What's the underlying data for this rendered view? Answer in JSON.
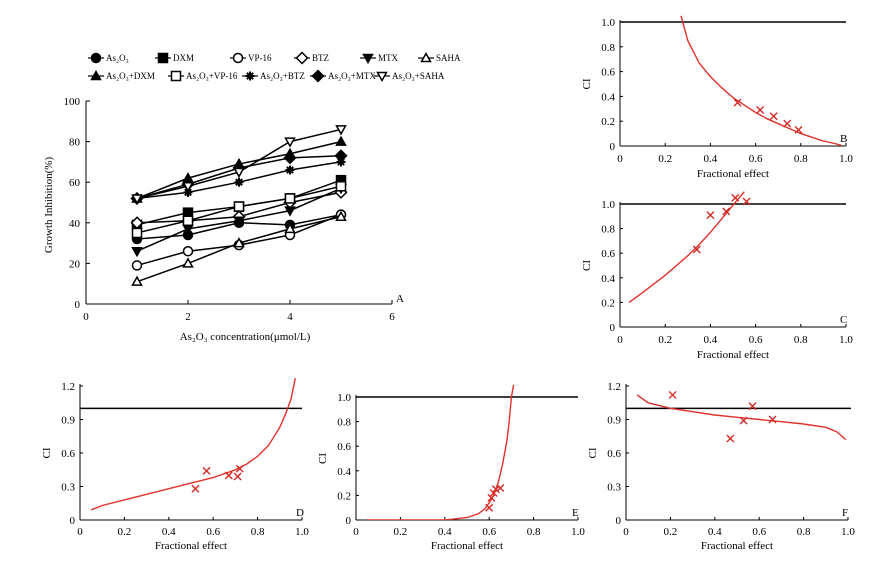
{
  "chart_data": [
    {
      "type": "line",
      "panel": "A",
      "xlabel": "As₂O₃ concentration(μmol/L)",
      "ylabel": "Growth Inhibition(%)",
      "xlim": [
        0,
        6
      ],
      "ylim": [
        0,
        100
      ],
      "xticks": [
        "0",
        "2",
        "4",
        "6"
      ],
      "yticks": [
        "0",
        "20",
        "40",
        "60",
        "80",
        "100"
      ],
      "x": [
        1,
        2,
        3,
        4,
        5
      ],
      "legend_position": "top",
      "series": [
        {
          "name": "As₂O₃",
          "marker": "circle-filled",
          "values": [
            32,
            34,
            40,
            39,
            44
          ]
        },
        {
          "name": "DXM",
          "marker": "square-filled",
          "values": [
            39,
            45,
            48,
            52,
            61
          ]
        },
        {
          "name": "VP-16",
          "marker": "circle-open",
          "values": [
            19,
            26,
            29,
            34,
            44
          ]
        },
        {
          "name": "BTZ",
          "marker": "diamond-open",
          "values": [
            40,
            41,
            43,
            50,
            55
          ]
        },
        {
          "name": "MTX",
          "marker": "triangle-down-filled",
          "values": [
            26,
            37,
            41,
            46,
            57
          ]
        },
        {
          "name": "SAHA",
          "marker": "triangle-open",
          "values": [
            11,
            20,
            30,
            37,
            43
          ]
        },
        {
          "name": "As₂O₃+DXM",
          "marker": "triangle-filled",
          "values": [
            52,
            62,
            69,
            74,
            80
          ]
        },
        {
          "name": "As₂O₃+VP-16",
          "marker": "square-open",
          "values": [
            35,
            41,
            48,
            52,
            58
          ]
        },
        {
          "name": "As₂O₃+BTZ",
          "marker": "asterisk",
          "values": [
            52,
            55,
            60,
            66,
            70
          ]
        },
        {
          "name": "As₂O₃+MTX",
          "marker": "diamond-filled",
          "values": [
            52,
            59,
            67,
            72,
            73
          ]
        },
        {
          "name": "As₂O₃+SAHA",
          "marker": "triangle-down-open",
          "values": [
            52,
            58,
            65,
            80,
            86
          ]
        }
      ]
    },
    {
      "type": "scatter",
      "panel": "B",
      "xlabel": "Fractional effect",
      "ylabel": "CI",
      "xlim": [
        0,
        1
      ],
      "ylim": [
        0,
        1.0
      ],
      "xticks": [
        "0",
        "0.2",
        "0.4",
        "0.6",
        "0.8",
        "1.0"
      ],
      "yticks": [
        "0",
        "0.2",
        "0.4",
        "0.6",
        "0.8",
        "1.0"
      ],
      "reference_line": 1.0,
      "points": [
        [
          0.52,
          0.35
        ],
        [
          0.62,
          0.29
        ],
        [
          0.68,
          0.24
        ],
        [
          0.74,
          0.18
        ],
        [
          0.79,
          0.13
        ]
      ],
      "fit_curve": [
        [
          0.27,
          1.05
        ],
        [
          0.3,
          0.85
        ],
        [
          0.35,
          0.67
        ],
        [
          0.4,
          0.56
        ],
        [
          0.45,
          0.47
        ],
        [
          0.5,
          0.39
        ],
        [
          0.55,
          0.33
        ],
        [
          0.6,
          0.27
        ],
        [
          0.65,
          0.22
        ],
        [
          0.7,
          0.18
        ],
        [
          0.75,
          0.14
        ],
        [
          0.8,
          0.1
        ],
        [
          0.85,
          0.07
        ],
        [
          0.9,
          0.04
        ],
        [
          0.95,
          0.02
        ],
        [
          0.98,
          0.005
        ]
      ]
    },
    {
      "type": "scatter",
      "panel": "C",
      "xlabel": "Fractional effect",
      "ylabel": "CI",
      "xlim": [
        0,
        1
      ],
      "ylim": [
        0,
        1.0
      ],
      "xticks": [
        "0",
        "0.2",
        "0.4",
        "0.6",
        "0.8",
        "1.0"
      ],
      "yticks": [
        "0",
        "0.2",
        "0.4",
        "0.6",
        "0.8",
        "1.0"
      ],
      "reference_line": 1.0,
      "points": [
        [
          0.34,
          0.63
        ],
        [
          0.4,
          0.91
        ],
        [
          0.47,
          0.94
        ],
        [
          0.51,
          1.05
        ],
        [
          0.56,
          1.02
        ]
      ],
      "fit_curve": [
        [
          0.04,
          0.2
        ],
        [
          0.1,
          0.28
        ],
        [
          0.15,
          0.35
        ],
        [
          0.2,
          0.42
        ],
        [
          0.25,
          0.5
        ],
        [
          0.3,
          0.58
        ],
        [
          0.35,
          0.67
        ],
        [
          0.4,
          0.77
        ],
        [
          0.45,
          0.88
        ],
        [
          0.5,
          0.99
        ],
        [
          0.55,
          1.1
        ]
      ]
    },
    {
      "type": "scatter",
      "panel": "D",
      "xlabel": "Fractional effect",
      "ylabel": "CI",
      "xlim": [
        0,
        1
      ],
      "ylim": [
        0,
        1.2
      ],
      "xticks": [
        "0",
        "0.2",
        "0.4",
        "0.6",
        "0.8",
        "1.0"
      ],
      "yticks": [
        "0",
        "0.3",
        "0.6",
        "0.9",
        "1.2"
      ],
      "reference_line": 1.0,
      "points": [
        [
          0.52,
          0.28
        ],
        [
          0.57,
          0.44
        ],
        [
          0.67,
          0.4
        ],
        [
          0.71,
          0.39
        ],
        [
          0.72,
          0.46
        ]
      ],
      "fit_curve": [
        [
          0.05,
          0.09
        ],
        [
          0.1,
          0.13
        ],
        [
          0.2,
          0.18
        ],
        [
          0.3,
          0.23
        ],
        [
          0.4,
          0.28
        ],
        [
          0.5,
          0.33
        ],
        [
          0.6,
          0.38
        ],
        [
          0.7,
          0.45
        ],
        [
          0.75,
          0.5
        ],
        [
          0.8,
          0.57
        ],
        [
          0.85,
          0.67
        ],
        [
          0.9,
          0.83
        ],
        [
          0.93,
          0.97
        ],
        [
          0.95,
          1.08
        ],
        [
          0.97,
          1.27
        ]
      ]
    },
    {
      "type": "scatter",
      "panel": "E",
      "xlabel": "Fractional effect",
      "ylabel": "CI",
      "xlim": [
        0,
        1
      ],
      "ylim": [
        0,
        1.0
      ],
      "xticks": [
        "0",
        "0.2",
        "0.4",
        "0.6",
        "0.8",
        "1.0"
      ],
      "yticks": [
        "0",
        "0.2",
        "0.4",
        "0.6",
        "0.8",
        "1.0"
      ],
      "reference_line": 1.0,
      "points": [
        [
          0.6,
          0.1
        ],
        [
          0.61,
          0.18
        ],
        [
          0.62,
          0.22
        ],
        [
          0.63,
          0.25
        ],
        [
          0.65,
          0.26
        ]
      ],
      "fit_curve": [
        [
          0.05,
          0
        ],
        [
          0.2,
          0
        ],
        [
          0.3,
          0
        ],
        [
          0.4,
          0
        ],
        [
          0.45,
          0.01
        ],
        [
          0.5,
          0.02
        ],
        [
          0.55,
          0.05
        ],
        [
          0.58,
          0.09
        ],
        [
          0.6,
          0.14
        ],
        [
          0.62,
          0.2
        ],
        [
          0.64,
          0.3
        ],
        [
          0.66,
          0.45
        ],
        [
          0.68,
          0.65
        ],
        [
          0.69,
          0.8
        ],
        [
          0.7,
          1.0
        ],
        [
          0.71,
          1.1
        ]
      ]
    },
    {
      "type": "scatter",
      "panel": "F",
      "xlabel": "Fractional effect",
      "ylabel": "CI",
      "xlim": [
        0,
        1
      ],
      "ylim": [
        0,
        1.2
      ],
      "xticks": [
        "0",
        "0.2",
        "0.4",
        "0.6",
        "0.8",
        "1.0"
      ],
      "yticks": [
        "0",
        "0.3",
        "0.6",
        "0.9",
        "1.2"
      ],
      "reference_line": 1.0,
      "points": [
        [
          0.21,
          1.12
        ],
        [
          0.47,
          0.73
        ],
        [
          0.53,
          0.89
        ],
        [
          0.57,
          1.02
        ],
        [
          0.66,
          0.9
        ]
      ],
      "fit_curve": [
        [
          0.05,
          1.12
        ],
        [
          0.1,
          1.05
        ],
        [
          0.2,
          1.0
        ],
        [
          0.3,
          0.97
        ],
        [
          0.4,
          0.94
        ],
        [
          0.5,
          0.92
        ],
        [
          0.6,
          0.9
        ],
        [
          0.7,
          0.88
        ],
        [
          0.8,
          0.86
        ],
        [
          0.9,
          0.83
        ],
        [
          0.95,
          0.79
        ],
        [
          0.99,
          0.72
        ]
      ]
    }
  ]
}
